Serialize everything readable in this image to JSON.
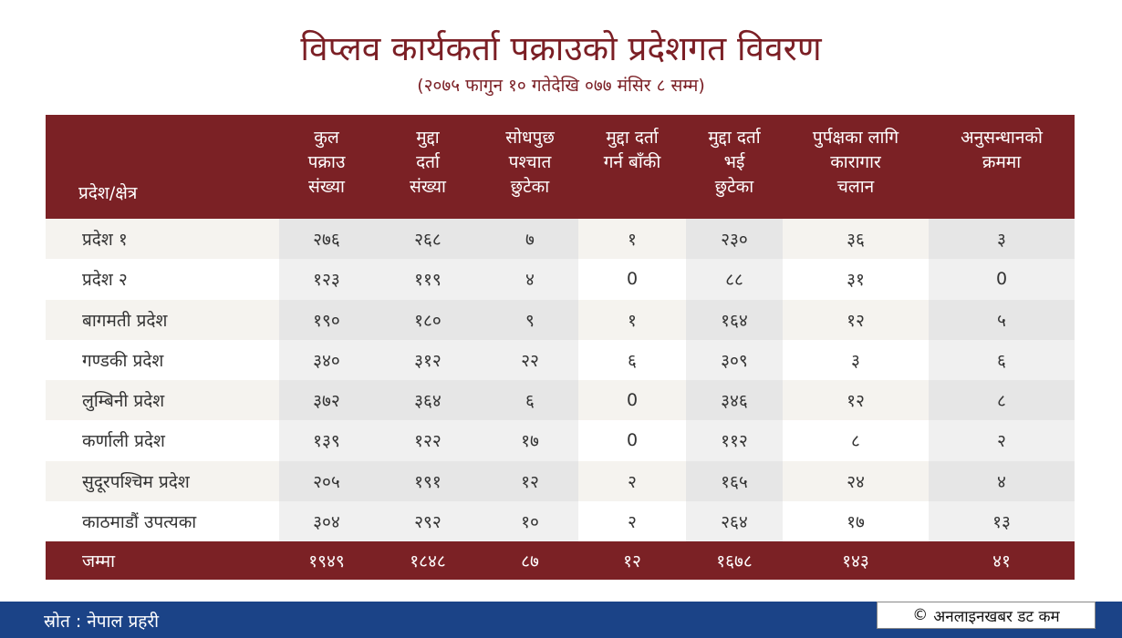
{
  "title": "विप्लव कार्यकर्ता पक्राउको प्रदेशगत विवरण",
  "subtitle": "(२०७५ फागुन १० गतेदेखि ०७७ मंसिर ८ सम्म)",
  "table": {
    "headers": [
      "प्रदेश/क्षेत्र",
      "कुल\nपक्राउ\nसंख्या",
      "मुद्दा\nदर्ता\nसंख्या",
      "सोधपुछ\nपश्चात\nछुटेका",
      "मुद्दा दर्ता\nगर्न बाँकी",
      "मुद्दा दर्ता\nभई\nछुटेका",
      "पुर्पक्षका लागि\nकारागार\nचलान",
      "अनुसन्धानको\nक्रममा"
    ],
    "rows": [
      [
        "प्रदेश १",
        "२७६",
        "२६८",
        "७",
        "१",
        "२३०",
        "३६",
        "३"
      ],
      [
        "प्रदेश २",
        "१२३",
        "११९",
        "४",
        "0",
        "८८",
        "३१",
        "0"
      ],
      [
        "बागमती प्रदेश",
        "१९०",
        "१८०",
        "९",
        "१",
        "१६४",
        "१२",
        "५"
      ],
      [
        "गण्डकी प्रदेश",
        "३४०",
        "३१२",
        "२२",
        "६",
        "३०९",
        "३",
        "६"
      ],
      [
        "लुम्बिनी प्रदेश",
        "३७२",
        "३६४",
        "६",
        "0",
        "३४६",
        "१२",
        "८"
      ],
      [
        "कर्णाली प्रदेश",
        "१३९",
        "१२२",
        "१७",
        "0",
        "११२",
        "८",
        "२"
      ],
      [
        "सुदूरपश्चिम प्रदेश",
        "२०५",
        "१९१",
        "१२",
        "२",
        "१६५",
        "२४",
        "४"
      ],
      [
        "काठमाडौं उपत्यका",
        "३०४",
        "२९२",
        "१०",
        "२",
        "२६४",
        "१७",
        "१३"
      ]
    ],
    "total": [
      "जम्मा",
      "१९४९",
      "१८४८",
      "८७",
      "१२",
      "१६७८",
      "१४३",
      "४१"
    ]
  },
  "footer": {
    "source": "स्रोत : नेपाल प्रहरी",
    "copyright_symbol": "©",
    "copyright": "अनलाइनखबर डट कम"
  },
  "colors": {
    "header_bg": "#7b2125",
    "title": "#7b1f25",
    "footer_bg": "#1b4387"
  }
}
